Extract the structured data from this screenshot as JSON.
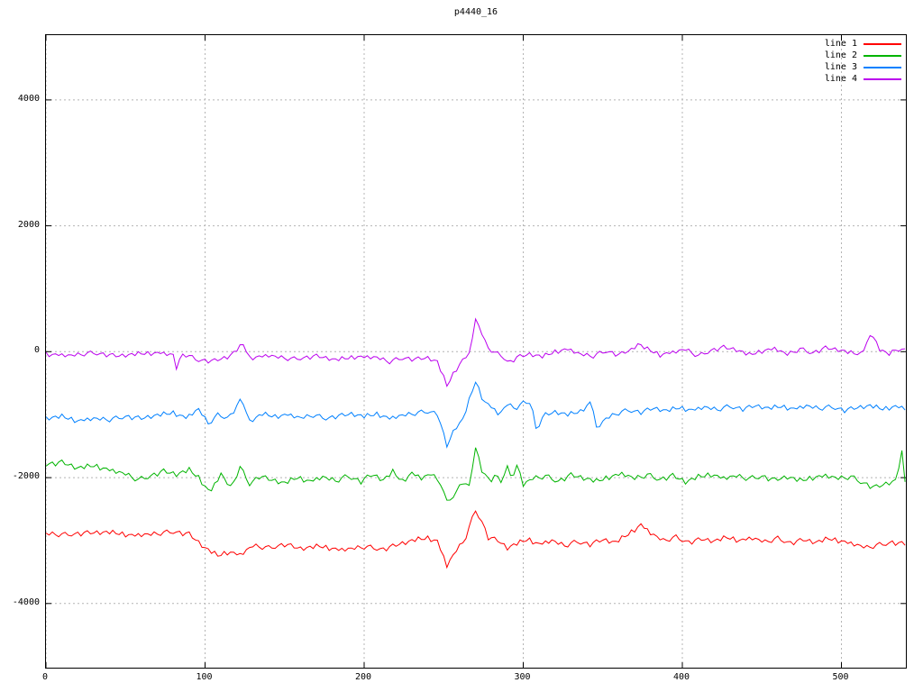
{
  "title": "p4440_16",
  "legend": {
    "items": [
      {
        "label": "line 1",
        "color": "#ff0000"
      },
      {
        "label": "line 2",
        "color": "#00b400"
      },
      {
        "label": "line 3",
        "color": "#0080ff"
      },
      {
        "label": "line 4",
        "color": "#bb00ee"
      }
    ]
  },
  "chart_data": {
    "type": "line",
    "title": "p4440_16",
    "xlabel": "",
    "ylabel": "",
    "xlim": [
      0,
      540.5
    ],
    "ylim": [
      -5020,
      5030
    ],
    "xticks": [
      0,
      100,
      200,
      300,
      400,
      500
    ],
    "yticks": [
      -4000,
      -2000,
      0,
      2000,
      4000
    ],
    "grid": true,
    "grid_color": "#b4b4b4",
    "legend_position": "top-right-inside",
    "sample_step": 2,
    "noise_pattern": [
      0.2,
      -0.5,
      0.8,
      -0.2,
      -0.9,
      0.4,
      1.0,
      -0.3,
      -0.7,
      0.1,
      0.6,
      -1.0,
      0.3,
      0.9,
      -0.4,
      -0.1,
      0.7,
      -0.8,
      0.2,
      0.5,
      -0.6,
      1.0,
      -0.2,
      -0.4,
      0.8,
      -1.0,
      0.1,
      0.4,
      -0.3,
      0.6,
      -0.7,
      0.3
    ],
    "series": [
      {
        "name": "line 1",
        "color": "#ff0000",
        "noise_amp": 40,
        "noise_offset": 0,
        "anchors": [
          [
            0,
            -2890
          ],
          [
            12,
            -2910
          ],
          [
            25,
            -2880
          ],
          [
            40,
            -2870
          ],
          [
            55,
            -2920
          ],
          [
            70,
            -2890
          ],
          [
            80,
            -2860
          ],
          [
            90,
            -2900
          ],
          [
            100,
            -3120
          ],
          [
            108,
            -3240
          ],
          [
            115,
            -3180
          ],
          [
            122,
            -3230
          ],
          [
            130,
            -3080
          ],
          [
            140,
            -3120
          ],
          [
            150,
            -3060
          ],
          [
            160,
            -3130
          ],
          [
            172,
            -3090
          ],
          [
            185,
            -3150
          ],
          [
            200,
            -3100
          ],
          [
            212,
            -3140
          ],
          [
            222,
            -3060
          ],
          [
            232,
            -2990
          ],
          [
            240,
            -2960
          ],
          [
            246,
            -3010
          ],
          [
            252,
            -3400
          ],
          [
            258,
            -3150
          ],
          [
            263,
            -3000
          ],
          [
            270,
            -2520
          ],
          [
            274,
            -2700
          ],
          [
            278,
            -2950
          ],
          [
            284,
            -3000
          ],
          [
            290,
            -3120
          ],
          [
            296,
            -3050
          ],
          [
            303,
            -2980
          ],
          [
            310,
            -3060
          ],
          [
            318,
            -3000
          ],
          [
            326,
            -3080
          ],
          [
            334,
            -3020
          ],
          [
            342,
            -3060
          ],
          [
            350,
            -2990
          ],
          [
            358,
            -3030
          ],
          [
            366,
            -2900
          ],
          [
            374,
            -2750
          ],
          [
            380,
            -2880
          ],
          [
            388,
            -3000
          ],
          [
            396,
            -2950
          ],
          [
            404,
            -3030
          ],
          [
            412,
            -2980
          ],
          [
            420,
            -3010
          ],
          [
            428,
            -2950
          ],
          [
            436,
            -3000
          ],
          [
            444,
            -2960
          ],
          [
            452,
            -3020
          ],
          [
            460,
            -2970
          ],
          [
            468,
            -3040
          ],
          [
            476,
            -2990
          ],
          [
            484,
            -3030
          ],
          [
            492,
            -2970
          ],
          [
            500,
            -3010
          ],
          [
            508,
            -3060
          ],
          [
            516,
            -3110
          ],
          [
            524,
            -3070
          ],
          [
            532,
            -3030
          ],
          [
            540,
            -3060
          ]
        ]
      },
      {
        "name": "line 2",
        "color": "#00b400",
        "noise_amp": 42,
        "noise_offset": 8,
        "anchors": [
          [
            0,
            -1790
          ],
          [
            10,
            -1760
          ],
          [
            20,
            -1850
          ],
          [
            30,
            -1810
          ],
          [
            40,
            -1880
          ],
          [
            50,
            -1940
          ],
          [
            58,
            -2040
          ],
          [
            66,
            -1970
          ],
          [
            74,
            -1900
          ],
          [
            82,
            -1950
          ],
          [
            90,
            -1880
          ],
          [
            96,
            -2000
          ],
          [
            103,
            -2240
          ],
          [
            110,
            -1940
          ],
          [
            116,
            -2160
          ],
          [
            122,
            -1840
          ],
          [
            128,
            -2100
          ],
          [
            134,
            -1980
          ],
          [
            142,
            -2040
          ],
          [
            150,
            -2090
          ],
          [
            158,
            -2000
          ],
          [
            166,
            -2060
          ],
          [
            174,
            -1990
          ],
          [
            182,
            -2050
          ],
          [
            190,
            -1980
          ],
          [
            198,
            -2060
          ],
          [
            205,
            -1950
          ],
          [
            212,
            -2040
          ],
          [
            218,
            -1910
          ],
          [
            224,
            -2060
          ],
          [
            230,
            -1930
          ],
          [
            236,
            -2010
          ],
          [
            242,
            -1940
          ],
          [
            248,
            -2080
          ],
          [
            252,
            -2400
          ],
          [
            257,
            -2260
          ],
          [
            262,
            -2060
          ],
          [
            266,
            -2160
          ],
          [
            270,
            -1520
          ],
          [
            274,
            -1880
          ],
          [
            279,
            -2060
          ],
          [
            284,
            -1970
          ],
          [
            287,
            -2110
          ],
          [
            290,
            -1770
          ],
          [
            293,
            -2070
          ],
          [
            296,
            -1790
          ],
          [
            300,
            -2110
          ],
          [
            306,
            -2010
          ],
          [
            314,
            -1980
          ],
          [
            322,
            -2060
          ],
          [
            330,
            -1960
          ],
          [
            338,
            -2010
          ],
          [
            346,
            -2060
          ],
          [
            354,
            -1990
          ],
          [
            362,
            -1940
          ],
          [
            370,
            -2010
          ],
          [
            378,
            -1960
          ],
          [
            386,
            -2030
          ],
          [
            394,
            -1970
          ],
          [
            402,
            -2070
          ],
          [
            410,
            -1990
          ],
          [
            418,
            -1950
          ],
          [
            426,
            -2010
          ],
          [
            434,
            -1970
          ],
          [
            442,
            -2020
          ],
          [
            450,
            -1980
          ],
          [
            458,
            -2040
          ],
          [
            466,
            -1990
          ],
          [
            474,
            -2050
          ],
          [
            482,
            -2000
          ],
          [
            490,
            -1970
          ],
          [
            498,
            -2010
          ],
          [
            506,
            -1990
          ],
          [
            514,
            -2090
          ],
          [
            521,
            -2160
          ],
          [
            528,
            -2100
          ],
          [
            534,
            -2050
          ],
          [
            538,
            -1610
          ],
          [
            540,
            -2060
          ]
        ]
      },
      {
        "name": "line 3",
        "color": "#0080ff",
        "noise_amp": 38,
        "noise_offset": 16,
        "anchors": [
          [
            0,
            -1060
          ],
          [
            10,
            -1030
          ],
          [
            20,
            -1100
          ],
          [
            30,
            -1060
          ],
          [
            40,
            -1080
          ],
          [
            50,
            -1030
          ],
          [
            60,
            -1060
          ],
          [
            70,
            -1010
          ],
          [
            80,
            -970
          ],
          [
            88,
            -1050
          ],
          [
            96,
            -910
          ],
          [
            102,
            -1140
          ],
          [
            108,
            -1010
          ],
          [
            115,
            -1050
          ],
          [
            123,
            -750
          ],
          [
            128,
            -1110
          ],
          [
            136,
            -990
          ],
          [
            144,
            -1030
          ],
          [
            152,
            -1000
          ],
          [
            160,
            -1050
          ],
          [
            168,
            -1010
          ],
          [
            176,
            -1060
          ],
          [
            184,
            -1020
          ],
          [
            192,
            -990
          ],
          [
            200,
            -1030
          ],
          [
            208,
            -990
          ],
          [
            216,
            -1060
          ],
          [
            224,
            -1010
          ],
          [
            232,
            -980
          ],
          [
            240,
            -950
          ],
          [
            246,
            -980
          ],
          [
            252,
            -1500
          ],
          [
            257,
            -1220
          ],
          [
            262,
            -1080
          ],
          [
            270,
            -470
          ],
          [
            275,
            -780
          ],
          [
            280,
            -880
          ],
          [
            285,
            -1000
          ],
          [
            290,
            -830
          ],
          [
            295,
            -900
          ],
          [
            300,
            -820
          ],
          [
            305,
            -790
          ],
          [
            308,
            -1240
          ],
          [
            313,
            -1010
          ],
          [
            320,
            -960
          ],
          [
            328,
            -1000
          ],
          [
            336,
            -950
          ],
          [
            343,
            -790
          ],
          [
            346,
            -1220
          ],
          [
            352,
            -1060
          ],
          [
            358,
            -990
          ],
          [
            366,
            -930
          ],
          [
            374,
            -960
          ],
          [
            382,
            -900
          ],
          [
            390,
            -940
          ],
          [
            398,
            -890
          ],
          [
            406,
            -930
          ],
          [
            414,
            -880
          ],
          [
            422,
            -920
          ],
          [
            430,
            -870
          ],
          [
            438,
            -910
          ],
          [
            446,
            -860
          ],
          [
            454,
            -900
          ],
          [
            462,
            -870
          ],
          [
            470,
            -910
          ],
          [
            478,
            -860
          ],
          [
            486,
            -900
          ],
          [
            494,
            -880
          ],
          [
            502,
            -930
          ],
          [
            510,
            -890
          ],
          [
            518,
            -860
          ],
          [
            526,
            -910
          ],
          [
            534,
            -870
          ],
          [
            540,
            -900
          ]
        ]
      },
      {
        "name": "line 4",
        "color": "#bb00ee",
        "noise_amp": 36,
        "noise_offset": 24,
        "anchors": [
          [
            0,
            -40
          ],
          [
            15,
            -60
          ],
          [
            30,
            -20
          ],
          [
            45,
            -70
          ],
          [
            60,
            -30
          ],
          [
            72,
            -20
          ],
          [
            80,
            -50
          ],
          [
            82,
            -260
          ],
          [
            86,
            -30
          ],
          [
            95,
            -130
          ],
          [
            105,
            -150
          ],
          [
            115,
            -80
          ],
          [
            124,
            120
          ],
          [
            128,
            -100
          ],
          [
            140,
            -60
          ],
          [
            155,
            -120
          ],
          [
            170,
            -70
          ],
          [
            182,
            -130
          ],
          [
            195,
            -80
          ],
          [
            208,
            -90
          ],
          [
            216,
            -160
          ],
          [
            224,
            -100
          ],
          [
            232,
            -120
          ],
          [
            240,
            -100
          ],
          [
            246,
            -160
          ],
          [
            252,
            -540
          ],
          [
            257,
            -310
          ],
          [
            262,
            -130
          ],
          [
            266,
            -40
          ],
          [
            270,
            510
          ],
          [
            273,
            360
          ],
          [
            277,
            90
          ],
          [
            282,
            -20
          ],
          [
            287,
            -70
          ],
          [
            291,
            -180
          ],
          [
            296,
            -90
          ],
          [
            304,
            -40
          ],
          [
            312,
            -80
          ],
          [
            320,
            0
          ],
          [
            328,
            40
          ],
          [
            336,
            -40
          ],
          [
            344,
            -70
          ],
          [
            352,
            10
          ],
          [
            360,
            -50
          ],
          [
            368,
            30
          ],
          [
            372,
            120
          ],
          [
            378,
            40
          ],
          [
            386,
            -50
          ],
          [
            394,
            -10
          ],
          [
            402,
            40
          ],
          [
            410,
            -70
          ],
          [
            418,
            20
          ],
          [
            426,
            70
          ],
          [
            434,
            30
          ],
          [
            442,
            -50
          ],
          [
            450,
            10
          ],
          [
            458,
            50
          ],
          [
            466,
            -40
          ],
          [
            474,
            40
          ],
          [
            482,
            -20
          ],
          [
            490,
            60
          ],
          [
            498,
            30
          ],
          [
            506,
            -20
          ],
          [
            512,
            -40
          ],
          [
            519,
            290
          ],
          [
            524,
            40
          ],
          [
            530,
            -40
          ],
          [
            535,
            50
          ],
          [
            540,
            10
          ]
        ]
      }
    ]
  }
}
